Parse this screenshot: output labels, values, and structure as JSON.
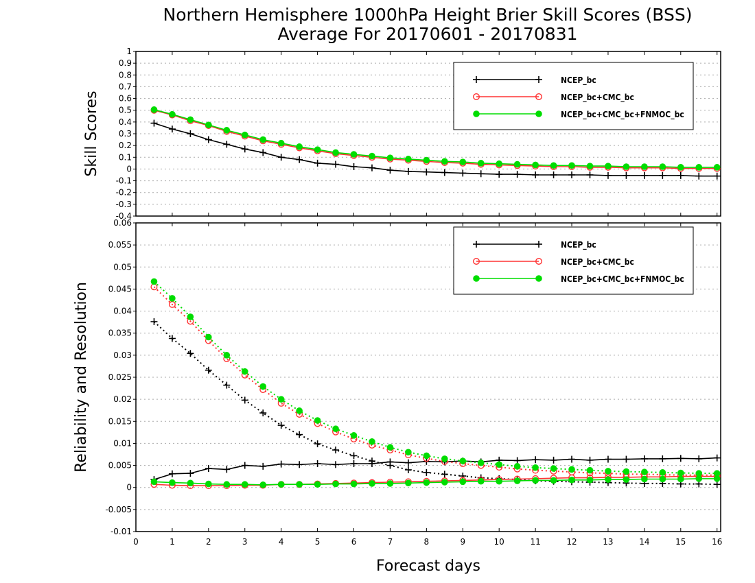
{
  "title_line1": "Northern Hemisphere 1000hPa Height Brier Skill Scores (BSS)",
  "title_line2": "Average For 20170601 - 20170831",
  "xlabel": "Forecast days",
  "colors": {
    "NCEP_bc": "#000000",
    "NCEP_bc+CMC_bc": "#ff3333",
    "NCEP_bc+CMC_bc+FNMOC_bc": "#00dd00"
  },
  "chart_data": [
    {
      "type": "line",
      "ylabel": "Skill Scores",
      "xlim": [
        0,
        16.1
      ],
      "ylim": [
        -0.4,
        1
      ],
      "yticks": [
        -0.4,
        -0.3,
        -0.2,
        -0.1,
        0,
        0.1,
        0.2,
        0.3,
        0.4,
        0.5,
        0.6,
        0.7,
        0.8,
        0.9,
        1
      ],
      "xticks": [
        0,
        1,
        2,
        3,
        4,
        5,
        6,
        7,
        8,
        9,
        10,
        11,
        12,
        13,
        14,
        15,
        16
      ],
      "grid": "horizontal dotted",
      "legend": "top-right",
      "x": [
        0.5,
        1,
        1.5,
        2,
        2.5,
        3,
        3.5,
        4,
        4.5,
        5,
        5.5,
        6,
        6.5,
        7,
        7.5,
        8,
        8.5,
        9,
        9.5,
        10,
        10.5,
        11,
        11.5,
        12,
        12.5,
        13,
        13.5,
        14,
        14.5,
        15,
        15.5,
        16
      ],
      "series": [
        {
          "name": "NCEP_bc",
          "marker": "plus",
          "values": [
            0.39,
            0.34,
            0.3,
            0.25,
            0.21,
            0.17,
            0.14,
            0.1,
            0.08,
            0.05,
            0.04,
            0.02,
            0.01,
            -0.01,
            -0.02,
            -0.025,
            -0.03,
            -0.035,
            -0.04,
            -0.045,
            -0.045,
            -0.05,
            -0.05,
            -0.05,
            -0.05,
            -0.055,
            -0.055,
            -0.055,
            -0.055,
            -0.055,
            -0.06,
            -0.06
          ]
        },
        {
          "name": "NCEP_bc+CMC_bc",
          "marker": "open-circle",
          "values": [
            0.5,
            0.46,
            0.41,
            0.37,
            0.32,
            0.28,
            0.24,
            0.21,
            0.18,
            0.155,
            0.13,
            0.115,
            0.1,
            0.085,
            0.075,
            0.065,
            0.055,
            0.05,
            0.04,
            0.035,
            0.03,
            0.025,
            0.02,
            0.02,
            0.015,
            0.015,
            0.01,
            0.01,
            0.01,
            0.005,
            0.005,
            0.005
          ]
        },
        {
          "name": "NCEP_bc+CMC_bc+FNMOC_bc",
          "marker": "filled-circle",
          "values": [
            0.505,
            0.465,
            0.42,
            0.375,
            0.33,
            0.29,
            0.25,
            0.22,
            0.19,
            0.165,
            0.14,
            0.125,
            0.11,
            0.095,
            0.085,
            0.075,
            0.065,
            0.06,
            0.05,
            0.045,
            0.04,
            0.035,
            0.03,
            0.03,
            0.025,
            0.025,
            0.02,
            0.02,
            0.02,
            0.015,
            0.015,
            0.015
          ]
        }
      ]
    },
    {
      "type": "line",
      "ylabel": "Reliability and Resolution",
      "xlim": [
        0,
        16.1
      ],
      "ylim": [
        -0.01,
        0.06
      ],
      "yticks": [
        -0.01,
        -0.005,
        0,
        0.005,
        0.01,
        0.015,
        0.02,
        0.025,
        0.03,
        0.035,
        0.04,
        0.045,
        0.05,
        0.055,
        0.06
      ],
      "ytick_labels": [
        "-0.01",
        "-0.005",
        "0",
        "0.005",
        "0.01",
        "0.015",
        "0.02",
        "0.025",
        "0.03",
        "0.035",
        "0.04",
        "0.045",
        "0.05",
        "0.055",
        "0.06"
      ],
      "xticks": [
        0,
        1,
        2,
        3,
        4,
        5,
        6,
        7,
        8,
        9,
        10,
        11,
        12,
        13,
        14,
        15,
        16
      ],
      "grid": "horizontal dotted",
      "legend": "top-right",
      "x": [
        0.5,
        1,
        1.5,
        2,
        2.5,
        3,
        3.5,
        4,
        4.5,
        5,
        5.5,
        6,
        6.5,
        7,
        7.5,
        8,
        8.5,
        9,
        9.5,
        10,
        10.5,
        11,
        11.5,
        12,
        12.5,
        13,
        13.5,
        14,
        14.5,
        15,
        15.5,
        16
      ],
      "series": [
        {
          "name": "NCEP_bc",
          "marker": "plus",
          "line": "solid",
          "values": [
            0.0018,
            0.0031,
            0.0032,
            0.0043,
            0.0041,
            0.005,
            0.0048,
            0.0053,
            0.0052,
            0.0054,
            0.0052,
            0.0054,
            0.0054,
            0.0058,
            0.0056,
            0.0059,
            0.0058,
            0.006,
            0.0058,
            0.0062,
            0.0061,
            0.0063,
            0.0062,
            0.0064,
            0.0062,
            0.0064,
            0.0064,
            0.0065,
            0.0065,
            0.0066,
            0.0065,
            0.0067
          ]
        },
        {
          "name": "NCEP_bc",
          "marker": "plus",
          "line": "dotted",
          "values": [
            0.0376,
            0.0338,
            0.0304,
            0.0266,
            0.0232,
            0.0198,
            0.0169,
            0.0141,
            0.012,
            0.0099,
            0.0085,
            0.0072,
            0.006,
            0.005,
            0.004,
            0.0034,
            0.003,
            0.0026,
            0.0022,
            0.002,
            0.0018,
            0.0015,
            0.0014,
            0.0013,
            0.0012,
            0.0011,
            0.001,
            0.0009,
            0.0009,
            0.0008,
            0.0008,
            0.0007
          ]
        },
        {
          "name": "NCEP_bc+CMC_bc",
          "marker": "open-circle",
          "line": "solid",
          "values": [
            0.0007,
            0.0005,
            0.0004,
            0.0004,
            0.0004,
            0.0005,
            0.0005,
            0.0007,
            0.0007,
            0.0008,
            0.0009,
            0.001,
            0.0011,
            0.0012,
            0.0013,
            0.0014,
            0.0015,
            0.0016,
            0.0017,
            0.0018,
            0.0019,
            0.002,
            0.0021,
            0.0022,
            0.0022,
            0.0023,
            0.0023,
            0.0024,
            0.0024,
            0.0025,
            0.0025,
            0.0025
          ]
        },
        {
          "name": "NCEP_bc+CMC_bc",
          "marker": "open-circle",
          "line": "dotted",
          "values": [
            0.0455,
            0.0415,
            0.0377,
            0.0333,
            0.0292,
            0.0255,
            0.0222,
            0.0191,
            0.0166,
            0.0145,
            0.0126,
            0.011,
            0.0096,
            0.0085,
            0.0074,
            0.0066,
            0.0059,
            0.0054,
            0.005,
            0.0046,
            0.0042,
            0.0039,
            0.0037,
            0.0035,
            0.0033,
            0.0032,
            0.003,
            0.003,
            0.0029,
            0.0028,
            0.0028,
            0.0028
          ]
        },
        {
          "name": "NCEP_bc+CMC_bc+FNMOC_bc",
          "marker": "filled-circle",
          "line": "solid",
          "values": [
            0.0013,
            0.0011,
            0.001,
            0.0008,
            0.0007,
            0.0007,
            0.0006,
            0.0007,
            0.0007,
            0.0007,
            0.0008,
            0.0008,
            0.0009,
            0.0009,
            0.001,
            0.0011,
            0.0012,
            0.0013,
            0.0014,
            0.0014,
            0.0015,
            0.0016,
            0.0016,
            0.0017,
            0.0017,
            0.0018,
            0.0018,
            0.0019,
            0.0019,
            0.0019,
            0.002,
            0.002
          ]
        },
        {
          "name": "NCEP_bc+CMC_bc+FNMOC_bc",
          "marker": "filled-circle",
          "line": "dotted",
          "values": [
            0.0467,
            0.0429,
            0.0387,
            0.0341,
            0.03,
            0.0263,
            0.0229,
            0.02,
            0.0174,
            0.0152,
            0.0133,
            0.0118,
            0.0104,
            0.0091,
            0.008,
            0.0072,
            0.0065,
            0.006,
            0.0056,
            0.0052,
            0.0048,
            0.0045,
            0.0043,
            0.0041,
            0.0039,
            0.0037,
            0.0036,
            0.0035,
            0.0034,
            0.0033,
            0.0032,
            0.0032
          ]
        }
      ]
    }
  ]
}
